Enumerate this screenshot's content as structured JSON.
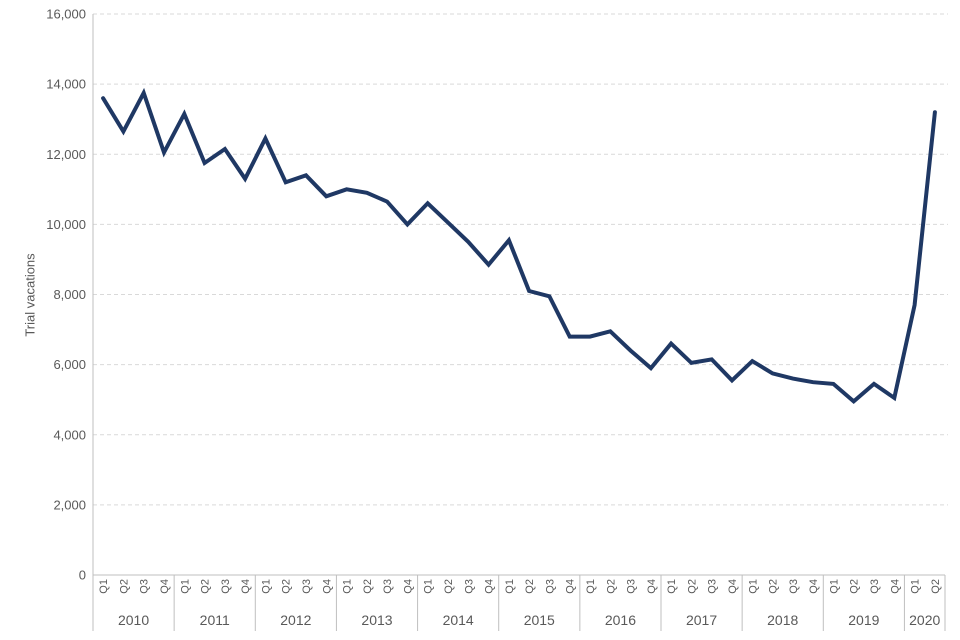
{
  "chart_data": {
    "type": "line",
    "title": "",
    "xlabel": "",
    "ylabel": "Trial vacations",
    "ylim": [
      0,
      16000
    ],
    "ytick_step": 2000,
    "ytick_labels": [
      "0",
      "2,000",
      "4,000",
      "6,000",
      "8,000",
      "10,000",
      "12,000",
      "14,000",
      "16,000"
    ],
    "grid": "horizontal-dashed",
    "legend": "none",
    "colors": {
      "line": "#1f3864",
      "axis": "#bfbfbf",
      "gridline": "#d9d9d9",
      "text": "#595959"
    },
    "years": [
      {
        "year": "2010",
        "quarters": [
          "Q1",
          "Q2",
          "Q3",
          "Q4"
        ],
        "values": [
          13600,
          12650,
          13750,
          12050
        ]
      },
      {
        "year": "2011",
        "quarters": [
          "Q1",
          "Q2",
          "Q3",
          "Q4"
        ],
        "values": [
          13150,
          11750,
          12150,
          11300
        ]
      },
      {
        "year": "2012",
        "quarters": [
          "Q1",
          "Q2",
          "Q3",
          "Q4"
        ],
        "values": [
          12450,
          11200,
          11400,
          10800
        ]
      },
      {
        "year": "2013",
        "quarters": [
          "Q1",
          "Q2",
          "Q3",
          "Q4"
        ],
        "values": [
          11000,
          10900,
          10650,
          10000
        ]
      },
      {
        "year": "2014",
        "quarters": [
          "Q1",
          "Q2",
          "Q3",
          "Q4"
        ],
        "values": [
          10600,
          10050,
          9500,
          8850
        ]
      },
      {
        "year": "2015",
        "quarters": [
          "Q1",
          "Q2",
          "Q3",
          "Q4"
        ],
        "values": [
          9550,
          8100,
          7950,
          6800
        ]
      },
      {
        "year": "2016",
        "quarters": [
          "Q1",
          "Q2",
          "Q3",
          "Q4"
        ],
        "values": [
          6800,
          6950,
          6400,
          5900
        ]
      },
      {
        "year": "2017",
        "quarters": [
          "Q1",
          "Q2",
          "Q3",
          "Q4"
        ],
        "values": [
          6600,
          6050,
          6150,
          5550
        ]
      },
      {
        "year": "2018",
        "quarters": [
          "Q1",
          "Q2",
          "Q3",
          "Q4"
        ],
        "values": [
          6100,
          5750,
          5600,
          5500
        ]
      },
      {
        "year": "2019",
        "quarters": [
          "Q1",
          "Q2",
          "Q3",
          "Q4"
        ],
        "values": [
          5450,
          4950,
          5450,
          5050
        ]
      },
      {
        "year": "2020",
        "quarters": [
          "Q1",
          "Q2"
        ],
        "values": [
          7700,
          13200
        ]
      }
    ]
  }
}
